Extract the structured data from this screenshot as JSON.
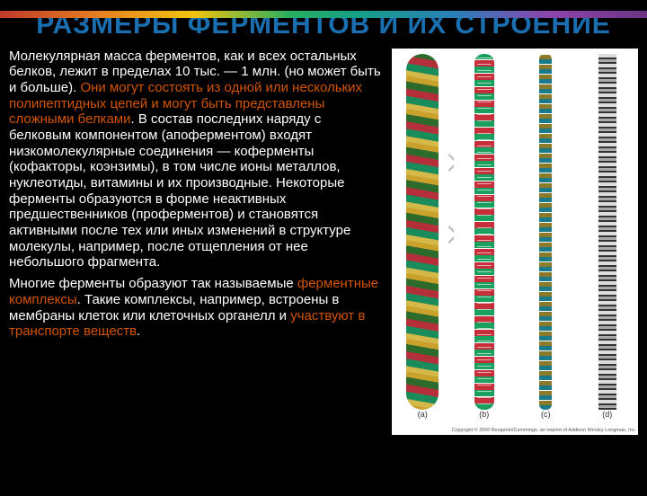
{
  "title_text": "РАЗМЕРЫ ФЕРМЕНТОВ И ИХ СТРОЕНИЕ",
  "title_color": "#1a6fb0",
  "title_fontsize": 30,
  "body_fontsize": 15,
  "hilite_color": "#d35400",
  "para1": {
    "seg1": "Молекулярная масса ферментов, как и всех остальных белков, лежит в пределах 10 тыс. — 1 млн. (но может быть и больше). ",
    "hl1": "Они могут состоять из одной или нескольких полипептидных цепей и могут быть представлены сложными белками",
    "seg2": ". В состав последних наряду с белковым компонентом (апоферментом) входят низкомолекулярные соединения — коферменты (кофакторы, коэнзимы), в том числе ионы металлов, нуклеотиды, витамины и их производные. Некоторые ферменты образуются в форме неактивных предшественников (проферментов) и становятся активными после тех или иных изменений в структуре молекулы, например, после отщепления от нее небольшого фрагмента."
  },
  "para2": {
    "seg1": "Многие ферменты образуют так называемые ",
    "hl1": "ферментные комплексы",
    "seg2": ". Такие комплексы, например, встроены в мембраны клеток или клеточных органелл и ",
    "hl2": "участвуют в транспорте веществ",
    "seg3": "."
  },
  "panels": [
    "(a)",
    "(b)",
    "(c)",
    "(d)"
  ],
  "copyright": "Copyright © 2000 Benjamin/Cummings, an imprint of Addison Wesley Longman, Inc."
}
